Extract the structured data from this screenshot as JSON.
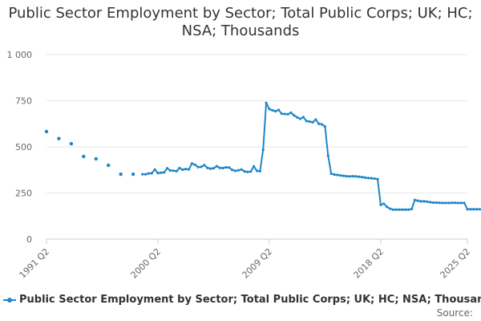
{
  "title": "Public Sector Employment by Sector; Total Public Corps; UK; HC; NSA; Thousands",
  "legend_label": "Public Sector Employment by Sector; Total Public Corps; UK; HC; NSA; Thousands",
  "source_label": "Source:",
  "y_tick_labels": [
    "0",
    "250",
    "500",
    "750",
    "1 000"
  ],
  "x_tick_labels": [
    "1991 Q2",
    "2000 Q2",
    "2009 Q2",
    "2018 Q2",
    "2025 Q2"
  ],
  "colors": {
    "series": "#1f86c8",
    "grid": "#e6e6e6",
    "text": "#333333"
  },
  "chart_data": {
    "type": "line",
    "title": "Public Sector Employment by Sector; Total Public Corps; UK; HC; NSA; Thousands",
    "xlabel": "",
    "ylabel": "",
    "ylim": [
      0,
      1000
    ],
    "yticks": [
      0,
      250,
      500,
      750,
      1000
    ],
    "xlim": [
      1991.25,
      2025.25
    ],
    "xticks": [
      1991.25,
      2000.25,
      2009.25,
      2018.25,
      2025.25
    ],
    "grid": true,
    "legend": "bottom",
    "series": [
      {
        "name": "Public Sector Employment by Sector; Total Public Corps; UK; HC; NSA; Thousands",
        "annual": [
          [
            1991.25,
            583
          ],
          [
            1992.25,
            545
          ],
          [
            1993.25,
            517
          ],
          [
            1994.25,
            448
          ],
          [
            1995.25,
            435
          ],
          [
            1996.25,
            400
          ],
          [
            1997.25,
            352
          ],
          [
            1998.25,
            352
          ]
        ],
        "quarterly_start": 1999.0,
        "quarterly_values": [
          352,
          351,
          356,
          357,
          377,
          358,
          360,
          362,
          384,
          372,
          371,
          368,
          385,
          376,
          380,
          378,
          410,
          403,
          390,
          392,
          401,
          386,
          382,
          384,
          395,
          386,
          385,
          389,
          388,
          375,
          370,
          373,
          377,
          367,
          364,
          366,
          394,
          370,
          368,
          485,
          738,
          705,
          698,
          693,
          700,
          680,
          678,
          677,
          685,
          670,
          660,
          652,
          661,
          640,
          637,
          633,
          648,
          625,
          622,
          610,
          452,
          355,
          350,
          348,
          345,
          343,
          341,
          340,
          341,
          340,
          338,
          336,
          333,
          331,
          330,
          328,
          325,
          186,
          192,
          175,
          165,
          160,
          160,
          160,
          160,
          160,
          160,
          163,
          212,
          208,
          205,
          205,
          203,
          200,
          198,
          198,
          197,
          196,
          196,
          196,
          197,
          197,
          196,
          196,
          196,
          162,
          162,
          162,
          162,
          162
        ]
      }
    ]
  }
}
